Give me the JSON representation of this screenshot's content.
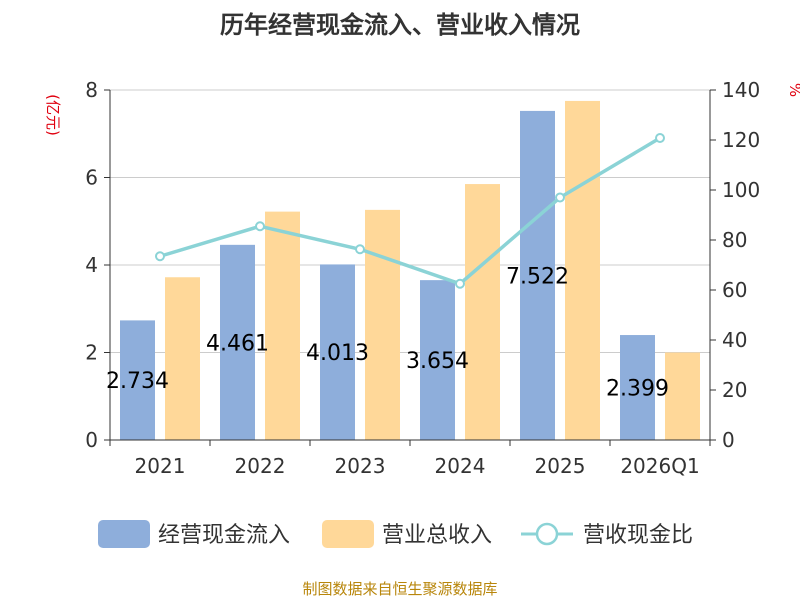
{
  "chart_data": {
    "type": "bar",
    "title": "历年经营现金流入、营业收入情况",
    "categories": [
      "2021",
      "2022",
      "2023",
      "2024",
      "2025",
      "2026Q1"
    ],
    "left_axis": {
      "unit": "(亿元)",
      "ylim": [
        0,
        8
      ],
      "ticks": [
        "0",
        "2",
        "4",
        "6",
        "8"
      ]
    },
    "right_axis": {
      "unit": "%",
      "ylim": [
        0,
        140
      ],
      "ticks": [
        "0",
        "20",
        "40",
        "60",
        "80",
        "100",
        "120",
        "140"
      ]
    },
    "series": [
      {
        "name": "经营现金流入",
        "type": "bar",
        "axis": "left",
        "color": "#8eaedb",
        "values": [
          2.734,
          4.461,
          4.013,
          3.654,
          7.522,
          2.399
        ],
        "labels": [
          "2.734",
          "4.461",
          "4.013",
          "3.654",
          "7.522",
          "2.399"
        ]
      },
      {
        "name": "营业总收入",
        "type": "bar",
        "axis": "left",
        "color": "#ffd899",
        "values": [
          3.72,
          5.22,
          5.26,
          5.85,
          7.75,
          2.0
        ]
      },
      {
        "name": "营收现金比",
        "type": "line",
        "axis": "right",
        "color": "#8bd3d6",
        "values": [
          73.5,
          85.5,
          76.3,
          62.5,
          97.0,
          120.8
        ]
      }
    ],
    "grid": true,
    "legend_position": "bottom",
    "source": "制图数据来自恒生聚源数据库"
  }
}
